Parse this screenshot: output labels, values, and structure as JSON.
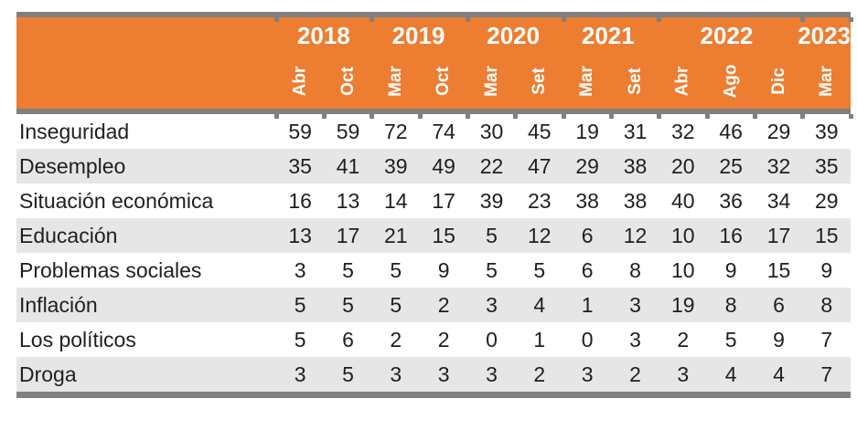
{
  "colors": {
    "header_bg": "#ED7D31",
    "header_text": "#FFFFFF",
    "border_gray": "#808080",
    "stripe_gray": "#E6E6E6",
    "body_text": "#1F1F1F"
  },
  "chart_data": {
    "type": "table",
    "column_groups": [
      {
        "year": "2018",
        "months": [
          "Abr",
          "Oct"
        ]
      },
      {
        "year": "2019",
        "months": [
          "Mar",
          "Oct"
        ]
      },
      {
        "year": "2020",
        "months": [
          "Mar",
          "Set"
        ]
      },
      {
        "year": "2021",
        "months": [
          "Mar",
          "Set"
        ]
      },
      {
        "year": "2022",
        "months": [
          "Abr",
          "Ago",
          "Dic"
        ]
      },
      {
        "year": "2023",
        "months": [
          "Mar"
        ]
      }
    ],
    "rows": [
      {
        "label": "Inseguridad",
        "values": [
          59,
          59,
          72,
          74,
          30,
          45,
          19,
          31,
          32,
          46,
          29,
          39
        ]
      },
      {
        "label": "Desempleo",
        "values": [
          35,
          41,
          39,
          49,
          22,
          47,
          29,
          38,
          20,
          25,
          32,
          35
        ]
      },
      {
        "label": "Situación económica",
        "values": [
          16,
          13,
          14,
          17,
          39,
          23,
          38,
          38,
          40,
          36,
          34,
          29
        ]
      },
      {
        "label": "Educación",
        "values": [
          13,
          17,
          21,
          15,
          5,
          12,
          6,
          12,
          10,
          16,
          17,
          15
        ]
      },
      {
        "label": "Problemas sociales",
        "values": [
          3,
          5,
          5,
          9,
          5,
          5,
          6,
          8,
          10,
          9,
          15,
          9
        ]
      },
      {
        "label": "Inflación",
        "values": [
          5,
          5,
          5,
          2,
          3,
          4,
          1,
          3,
          19,
          8,
          6,
          8
        ]
      },
      {
        "label": "Los políticos",
        "values": [
          5,
          6,
          2,
          2,
          0,
          1,
          0,
          3,
          2,
          5,
          9,
          7
        ]
      },
      {
        "label": "Droga",
        "values": [
          3,
          5,
          3,
          3,
          3,
          2,
          3,
          2,
          3,
          4,
          4,
          7
        ]
      }
    ]
  }
}
